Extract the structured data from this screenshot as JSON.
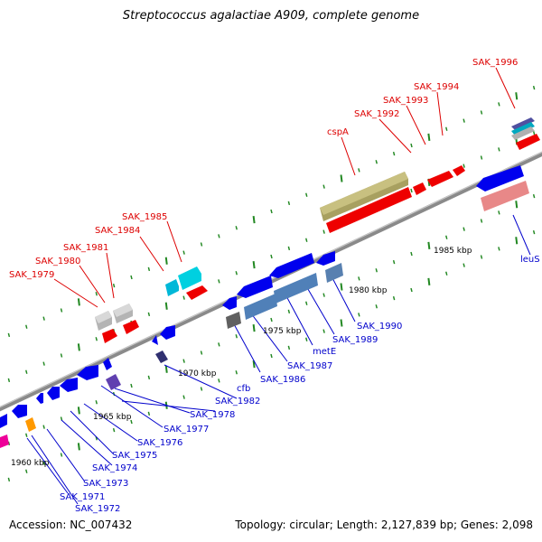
{
  "title": "Streptococcus agalactiae A909, complete genome",
  "footer": {
    "accession": "Accession: NC_007432",
    "summary": "Topology: circular; Length: 2,127,839 bp; Genes: 2,098"
  },
  "colors": {
    "backbone": "#909090",
    "tick": "#228822",
    "label_red": "#dd0000",
    "label_blue": "#0000cc"
  },
  "kbp_labels": [
    "1960 kbp",
    "1965 kbp",
    "1970 kbp",
    "1975 kbp",
    "1980 kbp",
    "1985 kbp"
  ],
  "labels_top": [
    "SAK_1979",
    "SAK_1980",
    "SAK_1981",
    "SAK_1984",
    "SAK_1985",
    "cspA",
    "SAK_1992",
    "SAK_1993",
    "SAK_1994",
    "SAK_1996"
  ],
  "labels_bottom": [
    "SAK_1971",
    "SAK_1972",
    "SAK_1973",
    "SAK_1974",
    "SAK_1975",
    "SAK_1976",
    "SAK_1977",
    "SAK_1978",
    "SAK_1982",
    "cfb",
    "SAK_1986",
    "SAK_1987",
    "metE",
    "SAK_1989",
    "SAK_1990",
    "leuS"
  ]
}
